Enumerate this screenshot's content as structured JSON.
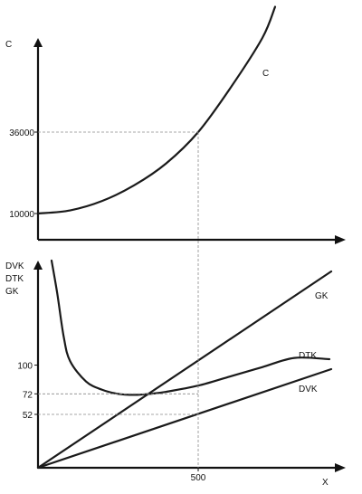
{
  "chart_data": [
    {
      "type": "line",
      "ylabel": "C",
      "xlabel": "",
      "xlim": [
        0,
        900
      ],
      "ylim": [
        5000,
        85000
      ],
      "yticks": [
        10000,
        36000
      ],
      "xticks": [
        500
      ],
      "series": [
        {
          "name": "C",
          "x": [
            0,
            100,
            200,
            300,
            400,
            500,
            600,
            700,
            740
          ],
          "y": [
            10000,
            11000,
            14000,
            19000,
            26000,
            36000,
            50000,
            66000,
            76000
          ]
        }
      ],
      "grid": false
    },
    {
      "type": "line",
      "ylabel_lines": [
        "DVK",
        "DTK",
        "GK"
      ],
      "xlabel": "X",
      "xlim": [
        0,
        900
      ],
      "ylim": [
        0,
        200
      ],
      "yticks": [
        52,
        72,
        100
      ],
      "xticks": [
        500
      ],
      "series": [
        {
          "name": "GK",
          "x": [
            0,
            920
          ],
          "y": [
            0,
            200
          ]
        },
        {
          "name": "DTK",
          "x": [
            42,
            60,
            80,
            100,
            150,
            200,
            250,
            300,
            350,
            400,
            500,
            600,
            700,
            800,
            920
          ],
          "y": [
            200,
            170,
            128,
            104,
            84,
            76,
            72,
            71,
            72,
            74,
            80,
            89,
            98,
            107,
            118
          ]
        },
        {
          "name": "DVK",
          "x": [
            0,
            920
          ],
          "y": [
            0,
            104
          ]
        }
      ],
      "grid": false
    }
  ]
}
